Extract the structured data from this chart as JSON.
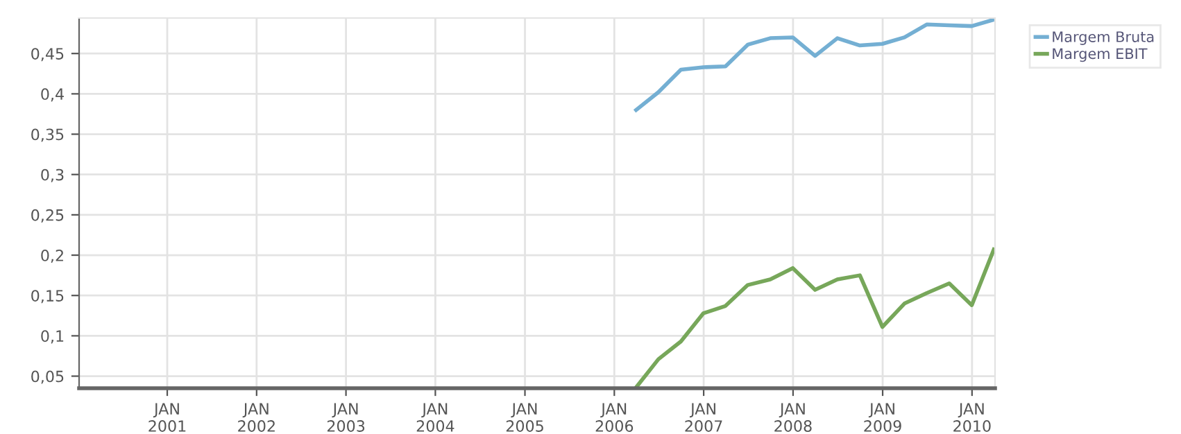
{
  "chart_data": {
    "type": "line",
    "x": [
      "2006-03-31",
      "2006-06-30",
      "2006-09-30",
      "2006-12-31",
      "2007-03-31",
      "2007-06-30",
      "2007-09-30",
      "2007-12-31",
      "2008-03-31",
      "2008-06-30",
      "2008-09-30",
      "2008-12-31",
      "2009-03-31",
      "2009-06-30",
      "2009-09-30",
      "2009-12-31",
      "2010-03-31"
    ],
    "series": [
      {
        "name": "Margem Bruta",
        "color": "#74afd3",
        "values": [
          0.38,
          0.402,
          0.43,
          0.433,
          0.434,
          0.461,
          0.469,
          0.47,
          0.447,
          0.469,
          0.46,
          0.462,
          0.47,
          0.486,
          0.485,
          0.484,
          0.492
        ]
      },
      {
        "name": "Margem EBIT",
        "color": "#77a75a",
        "values": [
          0.036,
          0.071,
          0.093,
          0.128,
          0.137,
          0.163,
          0.17,
          0.184,
          0.157,
          0.17,
          0.175,
          0.111,
          0.14,
          0.153,
          0.165,
          0.138,
          0.207
        ]
      }
    ],
    "xlim": [
      "2000-01-07",
      "2010-04-05"
    ],
    "xticks": [
      {
        "value": "2001-01-01",
        "label": "JAN\n2001"
      },
      {
        "value": "2002-01-01",
        "label": "JAN\n2002"
      },
      {
        "value": "2003-01-01",
        "label": "JAN\n2003"
      },
      {
        "value": "2004-01-01",
        "label": "JAN\n2004"
      },
      {
        "value": "2005-01-01",
        "label": "JAN\n2005"
      },
      {
        "value": "2006-01-01",
        "label": "JAN\n2006"
      },
      {
        "value": "2007-01-01",
        "label": "JAN\n2007"
      },
      {
        "value": "2008-01-01",
        "label": "JAN\n2008"
      },
      {
        "value": "2009-01-01",
        "label": "JAN\n2009"
      },
      {
        "value": "2010-01-01",
        "label": "JAN\n2010"
      }
    ],
    "ylim": [
      0.035,
      0.494
    ],
    "yticks": [
      {
        "value": 0.05,
        "label": "0,05"
      },
      {
        "value": 0.1,
        "label": "0,1"
      },
      {
        "value": 0.15,
        "label": "0,15"
      },
      {
        "value": 0.2,
        "label": "0,2"
      },
      {
        "value": 0.25,
        "label": "0,25"
      },
      {
        "value": 0.3,
        "label": "0,3"
      },
      {
        "value": 0.35,
        "label": "0,35"
      },
      {
        "value": 0.4,
        "label": "0,4"
      },
      {
        "value": 0.45,
        "label": "0,45"
      }
    ],
    "grid": true,
    "legend": "top right",
    "marker": "none",
    "line_style": "solid"
  }
}
